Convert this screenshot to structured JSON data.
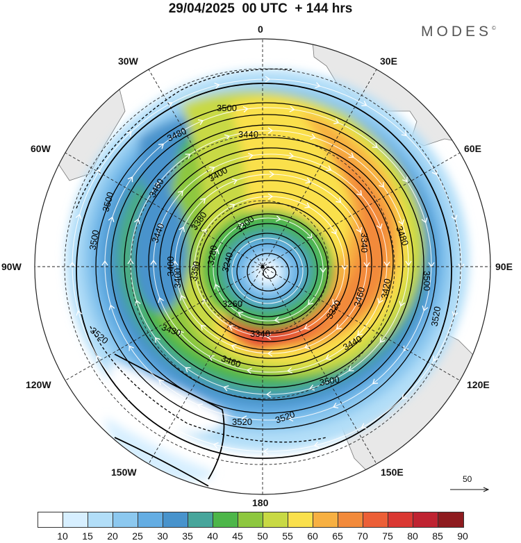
{
  "header": {
    "title": "29/04/2025  00 UTC  + 144 hrs",
    "logo_text": "MODES",
    "logo_mark": "©"
  },
  "map": {
    "projection": "south polar stereographic",
    "longitude_labels": [
      "0",
      "30E",
      "60E",
      "90E",
      "120E",
      "150E",
      "180",
      "150W",
      "120W",
      "90W",
      "60W",
      "30W"
    ],
    "contour_labels": [
      "3500",
      "3480",
      "3440",
      "3460",
      "3500",
      "3400",
      "3500",
      "3380",
      "3300",
      "3440",
      "3400",
      "3350",
      "3240",
      "3280",
      "3340",
      "3480",
      "3420",
      "3520",
      "3460",
      "3400",
      "3320",
      "3260",
      "3500",
      "3340",
      "3520",
      "3430",
      "3440",
      "3460",
      "3500",
      "3520",
      "3520"
    ],
    "vector_reference": "50",
    "colors": {
      "land": "#e8e8e8",
      "contour": "#000000",
      "streamline": "#ffffff"
    }
  },
  "colorbar": {
    "ticks": [
      "10",
      "15",
      "20",
      "25",
      "30",
      "35",
      "40",
      "45",
      "50",
      "55",
      "60",
      "65",
      "70",
      "75",
      "80",
      "85",
      "90"
    ],
    "colors": [
      "#ffffff",
      "#d7efff",
      "#b2def8",
      "#8cc8ef",
      "#64ade3",
      "#4893cc",
      "#47a59b",
      "#4db649",
      "#8dc73f",
      "#c8d944",
      "#fae04c",
      "#f7b042",
      "#f28a3b",
      "#ec5f37",
      "#da3832",
      "#bf2331",
      "#8e1b1f"
    ]
  }
}
